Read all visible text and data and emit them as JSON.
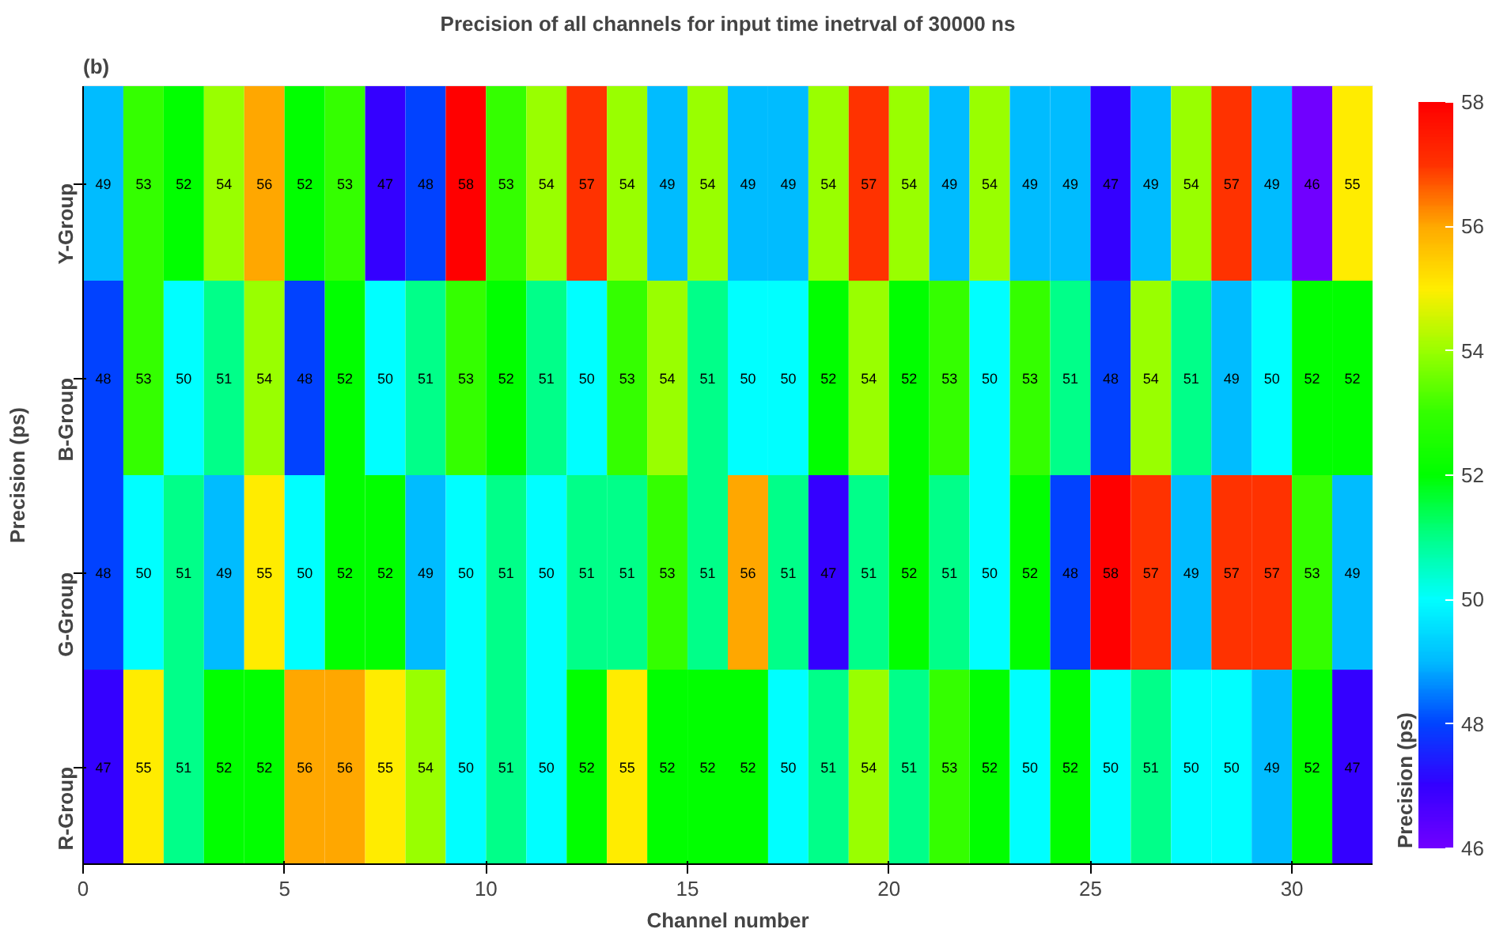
{
  "chart_data": {
    "type": "heatmap",
    "title": "Precision of all channels for input time inetrval of 30000 ns",
    "xlabel": "Channel number",
    "ylabel": "Precision (ps)",
    "clabel": "Precision (ps)",
    "annotations": [
      "(b)"
    ],
    "x": [
      0.5,
      1.5,
      2.5,
      3.5,
      4.5,
      5.5,
      6.5,
      7.5,
      8.5,
      9.5,
      10.5,
      11.5,
      12.5,
      13.5,
      14.5,
      15.5,
      16.5,
      17.5,
      18.5,
      19.5,
      20.5,
      21.5,
      22.5,
      23.5,
      24.5,
      25.5,
      26.5,
      27.5,
      28.5,
      29.5,
      30.5,
      31.5
    ],
    "xlim": [
      0,
      32
    ],
    "xticks": [
      0,
      5,
      10,
      15,
      20,
      25,
      30
    ],
    "y_categories": [
      "Y-Group",
      "B-Group",
      "G-Group",
      "R-Group"
    ],
    "cells": [
      [
        49,
        53,
        52,
        54,
        56,
        52,
        53,
        47,
        48,
        58,
        53,
        54,
        57,
        54,
        49,
        54,
        49,
        49,
        54,
        57,
        54,
        49,
        54,
        49,
        49,
        47,
        49,
        54,
        57,
        49,
        46,
        55
      ],
      [
        48,
        53,
        50,
        51,
        54,
        48,
        52,
        50,
        51,
        53,
        52,
        51,
        50,
        53,
        54,
        51,
        50,
        50,
        52,
        54,
        52,
        53,
        50,
        53,
        51,
        48,
        54,
        51,
        49,
        50,
        52,
        52
      ],
      [
        48,
        50,
        51,
        49,
        55,
        50,
        52,
        52,
        49,
        50,
        51,
        50,
        51,
        51,
        53,
        51,
        56,
        51,
        47,
        51,
        52,
        51,
        50,
        52,
        48,
        58,
        57,
        49,
        57,
        57,
        53,
        49
      ],
      [
        47,
        55,
        51,
        52,
        52,
        56,
        56,
        55,
        54,
        50,
        51,
        50,
        52,
        55,
        52,
        52,
        52,
        50,
        51,
        54,
        51,
        53,
        52,
        50,
        52,
        50,
        51,
        50,
        50,
        49,
        52,
        47
      ]
    ],
    "clim": [
      46,
      58
    ],
    "cticks": [
      46,
      48,
      50,
      52,
      54,
      56,
      58
    ],
    "data_labels": true,
    "grid": false
  }
}
